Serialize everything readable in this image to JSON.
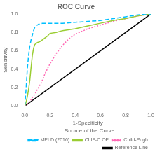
{
  "chart_data": {
    "type": "line",
    "title": "ROC Curve",
    "xlabel": "1-Specificity",
    "ylabel": "Sensitivity",
    "xlim": [
      0.0,
      1.0
    ],
    "ylim": [
      0.0,
      1.0
    ],
    "xticks": [
      {
        "value": 0.0,
        "label": "0.0"
      },
      0.2,
      0.4,
      0.6,
      0.8,
      {
        "value": 1.0,
        "label": "1.0"
      }
    ],
    "yticks": [
      {
        "value": 0.0,
        "label": "0.0"
      },
      0.2,
      0.4,
      0.6,
      0.8,
      {
        "value": 1.0,
        "label": "1.0"
      }
    ],
    "grid": false,
    "legend": "lower right",
    "legend_title": "Source of the Curve",
    "series": [
      {
        "name": "MELD (2016)",
        "color": "#00BFFF",
        "line_style": "dashed",
        "x": [
          0.0,
          0.01,
          0.02,
          0.03,
          0.04,
          0.05,
          0.06,
          0.07,
          0.08,
          0.09,
          0.1,
          0.11,
          0.12,
          0.14,
          0.16,
          0.2,
          0.25,
          0.3,
          0.4,
          0.5,
          0.6,
          0.7,
          0.8,
          0.9,
          0.95,
          1.0
        ],
        "values": [
          0.0,
          0.18,
          0.4,
          0.55,
          0.65,
          0.72,
          0.77,
          0.82,
          0.86,
          0.88,
          0.88,
          0.89,
          0.89,
          0.9,
          0.9,
          0.9,
          0.9,
          0.9,
          0.91,
          0.92,
          0.93,
          0.95,
          0.97,
          0.99,
          1.0,
          1.0
        ]
      },
      {
        "name": "CLIF-C OF",
        "color": "#9ACD32",
        "line_style": "solid",
        "x": [
          0.0,
          0.01,
          0.02,
          0.03,
          0.04,
          0.05,
          0.06,
          0.07,
          0.08,
          0.09,
          0.1,
          0.12,
          0.14,
          0.16,
          0.18,
          0.2,
          0.25,
          0.3,
          0.4,
          0.5,
          0.6,
          0.7,
          0.8,
          0.9,
          1.0
        ],
        "values": [
          0.0,
          0.04,
          0.1,
          0.18,
          0.28,
          0.42,
          0.55,
          0.63,
          0.67,
          0.68,
          0.69,
          0.7,
          0.72,
          0.74,
          0.76,
          0.79,
          0.8,
          0.82,
          0.84,
          0.87,
          0.9,
          0.93,
          0.95,
          0.98,
          1.0
        ]
      },
      {
        "name": "Child-Pugh",
        "color": "#FF69B4",
        "line_style": "dotted",
        "x": [
          0.0,
          0.01,
          0.02,
          0.03,
          0.04,
          0.05,
          0.06,
          0.08,
          0.1,
          0.13,
          0.16,
          0.2,
          0.25,
          0.3,
          0.35,
          0.4,
          0.5,
          0.6,
          0.7,
          0.8,
          0.9,
          1.0
        ],
        "values": [
          0.0,
          0.01,
          0.02,
          0.03,
          0.05,
          0.07,
          0.09,
          0.13,
          0.18,
          0.25,
          0.35,
          0.46,
          0.57,
          0.66,
          0.73,
          0.78,
          0.84,
          0.88,
          0.92,
          0.95,
          0.98,
          1.0
        ]
      },
      {
        "name": "Reference Line",
        "color": "#000000",
        "line_style": "solid",
        "x": [
          0.0,
          1.0
        ],
        "values": [
          0.0,
          1.0
        ]
      }
    ]
  }
}
